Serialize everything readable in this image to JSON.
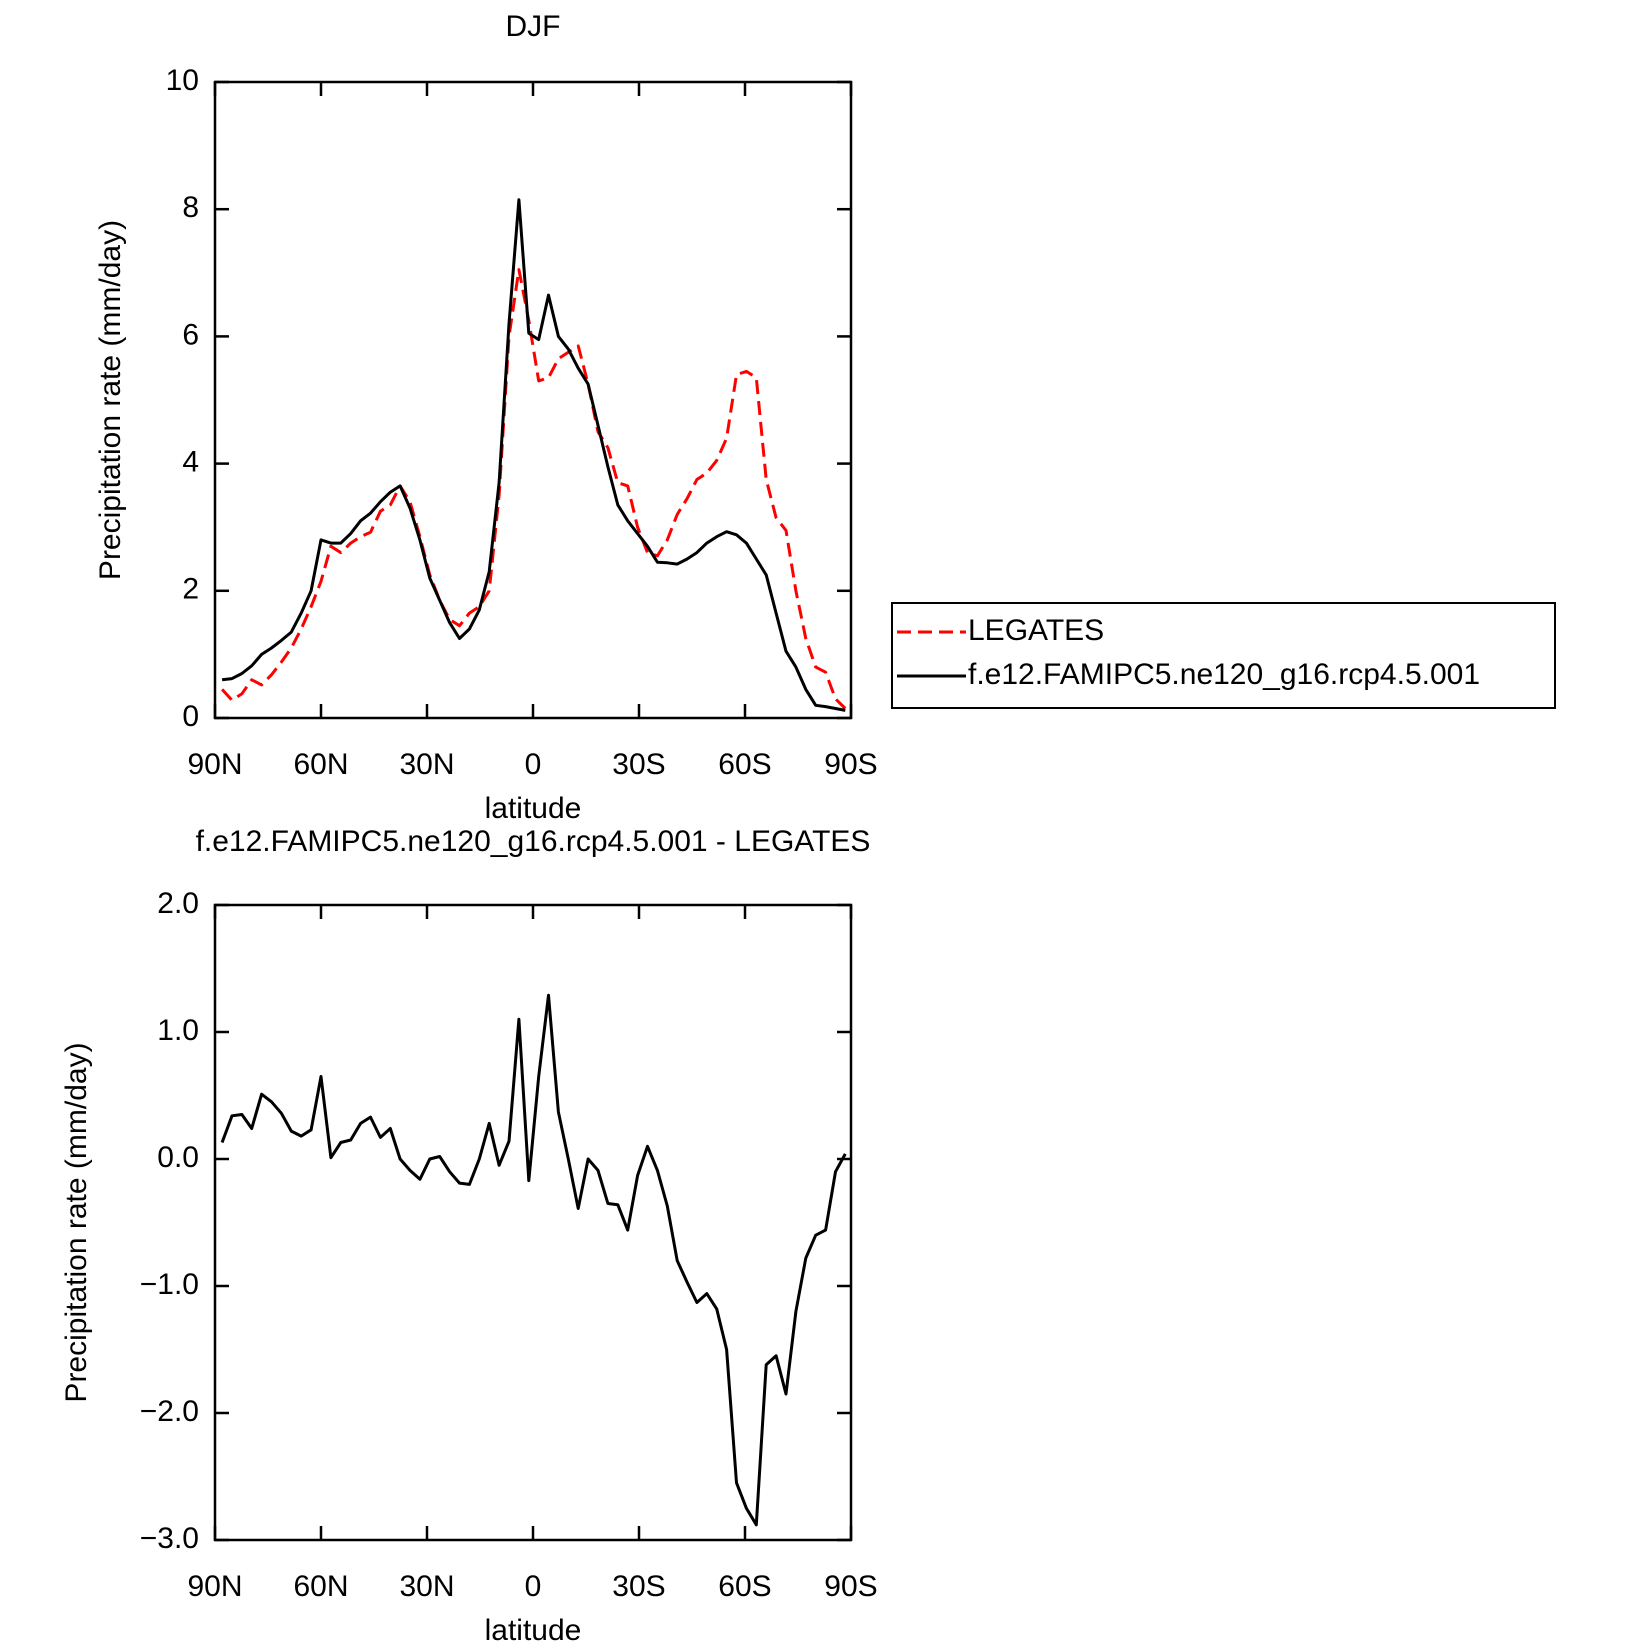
{
  "chart_data": [
    {
      "type": "line",
      "title": "DJF",
      "xlabel": "latitude",
      "ylabel": "Precipitation rate (mm/day)",
      "x": [
        88,
        85.2,
        82.4,
        79.6,
        76.8,
        74,
        71.2,
        68.4,
        65.6,
        62.8,
        60,
        57.2,
        54.4,
        51.6,
        48.8,
        46,
        43.2,
        40.4,
        37.6,
        34.8,
        32,
        29.2,
        26.4,
        23.6,
        20.8,
        18,
        15.2,
        12.4,
        9.6,
        6.8,
        4,
        1.2,
        -1.6,
        -4.4,
        -7.2,
        -10,
        -12.8,
        -15.6,
        -18.4,
        -21.2,
        -24,
        -26.8,
        -29.6,
        -32.4,
        -35.2,
        -38,
        -40.8,
        -43.6,
        -46.4,
        -49.2,
        -52,
        -54.8,
        -57.6,
        -60.4,
        -63.2,
        -66,
        -68.8,
        -71.6,
        -74.4,
        -77.2,
        -80,
        -82.8,
        -85.6,
        -88.4
      ],
      "series": [
        {
          "name": "LEGATES",
          "color": "#ff0000",
          "dash": true,
          "values": [
            0.45,
            0.28,
            0.38,
            0.6,
            0.52,
            0.68,
            0.88,
            1.1,
            1.4,
            1.75,
            2.15,
            2.7,
            2.6,
            2.75,
            2.85,
            2.92,
            3.25,
            3.35,
            3.65,
            3.4,
            2.85,
            2.25,
            1.85,
            1.55,
            1.45,
            1.65,
            1.75,
            2.0,
            3.5,
            6.0,
            7.05,
            6.25,
            5.3,
            5.35,
            5.65,
            5.75,
            5.85,
            5.25,
            4.5,
            4.25,
            3.7,
            3.65,
            3.0,
            2.6,
            2.55,
            2.8,
            3.2,
            3.45,
            3.75,
            3.85,
            4.05,
            4.4,
            5.4,
            5.45,
            5.35,
            3.75,
            3.15,
            2.95,
            2.0,
            1.25,
            0.8,
            0.72,
            0.3,
            0.15
          ]
        },
        {
          "name": "f.e12.FAMIPC5.ne120_g16.rcp4.5.001",
          "color": "#000000",
          "dash": false,
          "values": [
            0.6,
            0.62,
            0.7,
            0.82,
            1.0,
            1.1,
            1.22,
            1.35,
            1.65,
            2.0,
            2.8,
            2.75,
            2.75,
            2.9,
            3.1,
            3.22,
            3.4,
            3.55,
            3.65,
            3.3,
            2.8,
            2.2,
            1.85,
            1.5,
            1.25,
            1.4,
            1.7,
            2.3,
            3.7,
            6.2,
            8.15,
            6.05,
            5.95,
            6.65,
            6.0,
            5.8,
            5.5,
            5.25,
            4.6,
            3.95,
            3.35,
            3.1,
            2.9,
            2.7,
            2.45,
            2.44,
            2.42,
            2.5,
            2.6,
            2.75,
            2.85,
            2.93,
            2.88,
            2.75,
            2.5,
            2.25,
            1.65,
            1.05,
            0.8,
            0.45,
            0.2,
            0.18,
            0.15,
            0.12
          ]
        }
      ],
      "xlim": [
        90,
        -90
      ],
      "xticks": [
        {
          "value": 90,
          "label": "90N"
        },
        {
          "value": 60,
          "label": "60N"
        },
        {
          "value": 30,
          "label": "30N"
        },
        0,
        {
          "value": -30,
          "label": "30S"
        },
        {
          "value": -60,
          "label": "60S"
        },
        {
          "value": -90,
          "label": "90S"
        }
      ],
      "ylim": [
        0,
        10
      ],
      "yticks": [
        0,
        2,
        4,
        6,
        8,
        10
      ],
      "legend": "right"
    },
    {
      "type": "line",
      "title": "f.e12.FAMIPC5.ne120_g16.rcp4.5.001 - LEGATES",
      "xlabel": "latitude",
      "ylabel": "Precipitation rate (mm/day)",
      "x": [
        88,
        85.2,
        82.4,
        79.6,
        76.8,
        74,
        71.2,
        68.4,
        65.6,
        62.8,
        60,
        57.2,
        54.4,
        51.6,
        48.8,
        46,
        43.2,
        40.4,
        37.6,
        34.8,
        32,
        29.2,
        26.4,
        23.6,
        20.8,
        18,
        15.2,
        12.4,
        9.6,
        6.8,
        4,
        1.2,
        -1.6,
        -4.4,
        -7.2,
        -10,
        -12.8,
        -15.6,
        -18.4,
        -21.2,
        -24,
        -26.8,
        -29.6,
        -32.4,
        -35.2,
        -38,
        -40.8,
        -43.6,
        -46.4,
        -49.2,
        -52,
        -54.8,
        -57.6,
        -60.4,
        -63.2,
        -66,
        -68.8,
        -71.6,
        -74.4,
        -77.2,
        -80,
        -82.8,
        -85.6,
        -88.4
      ],
      "color": "#000000",
      "values": [
        0.13,
        0.34,
        0.35,
        0.24,
        0.51,
        0.45,
        0.36,
        0.22,
        0.18,
        0.23,
        0.65,
        0.01,
        0.13,
        0.15,
        0.28,
        0.33,
        0.17,
        0.24,
        0.0,
        -0.09,
        -0.16,
        0.0,
        0.02,
        -0.1,
        -0.19,
        -0.2,
        0.0,
        0.28,
        -0.05,
        0.14,
        1.1,
        -0.17,
        0.65,
        1.29,
        0.37,
        0.0,
        -0.39,
        0.0,
        -0.09,
        -0.35,
        -0.36,
        -0.56,
        -0.13,
        0.1,
        -0.09,
        -0.37,
        -0.8,
        -0.97,
        -1.13,
        -1.06,
        -1.18,
        -1.5,
        -2.55,
        -2.75,
        -2.88,
        -1.62,
        -1.55,
        -1.85,
        -1.2,
        -0.78,
        -0.6,
        -0.56,
        -0.1,
        0.04
      ],
      "xlim": [
        90,
        -90
      ],
      "xticks": [
        {
          "value": 90,
          "label": "90N"
        },
        {
          "value": 60,
          "label": "60N"
        },
        {
          "value": 30,
          "label": "30N"
        },
        0,
        {
          "value": -30,
          "label": "30S"
        },
        {
          "value": -60,
          "label": "60S"
        },
        {
          "value": -90,
          "label": "90S"
        }
      ],
      "ylim": [
        -3,
        2
      ],
      "yticks": [
        {
          "value": -3,
          "label": "−3.0"
        },
        {
          "value": -2,
          "label": "−2.0"
        },
        {
          "value": -1,
          "label": "−1.0"
        },
        {
          "value": 0,
          "label": "0.0"
        },
        {
          "value": 1,
          "label": "1.0"
        },
        {
          "value": 2,
          "label": "2.0"
        }
      ]
    }
  ]
}
